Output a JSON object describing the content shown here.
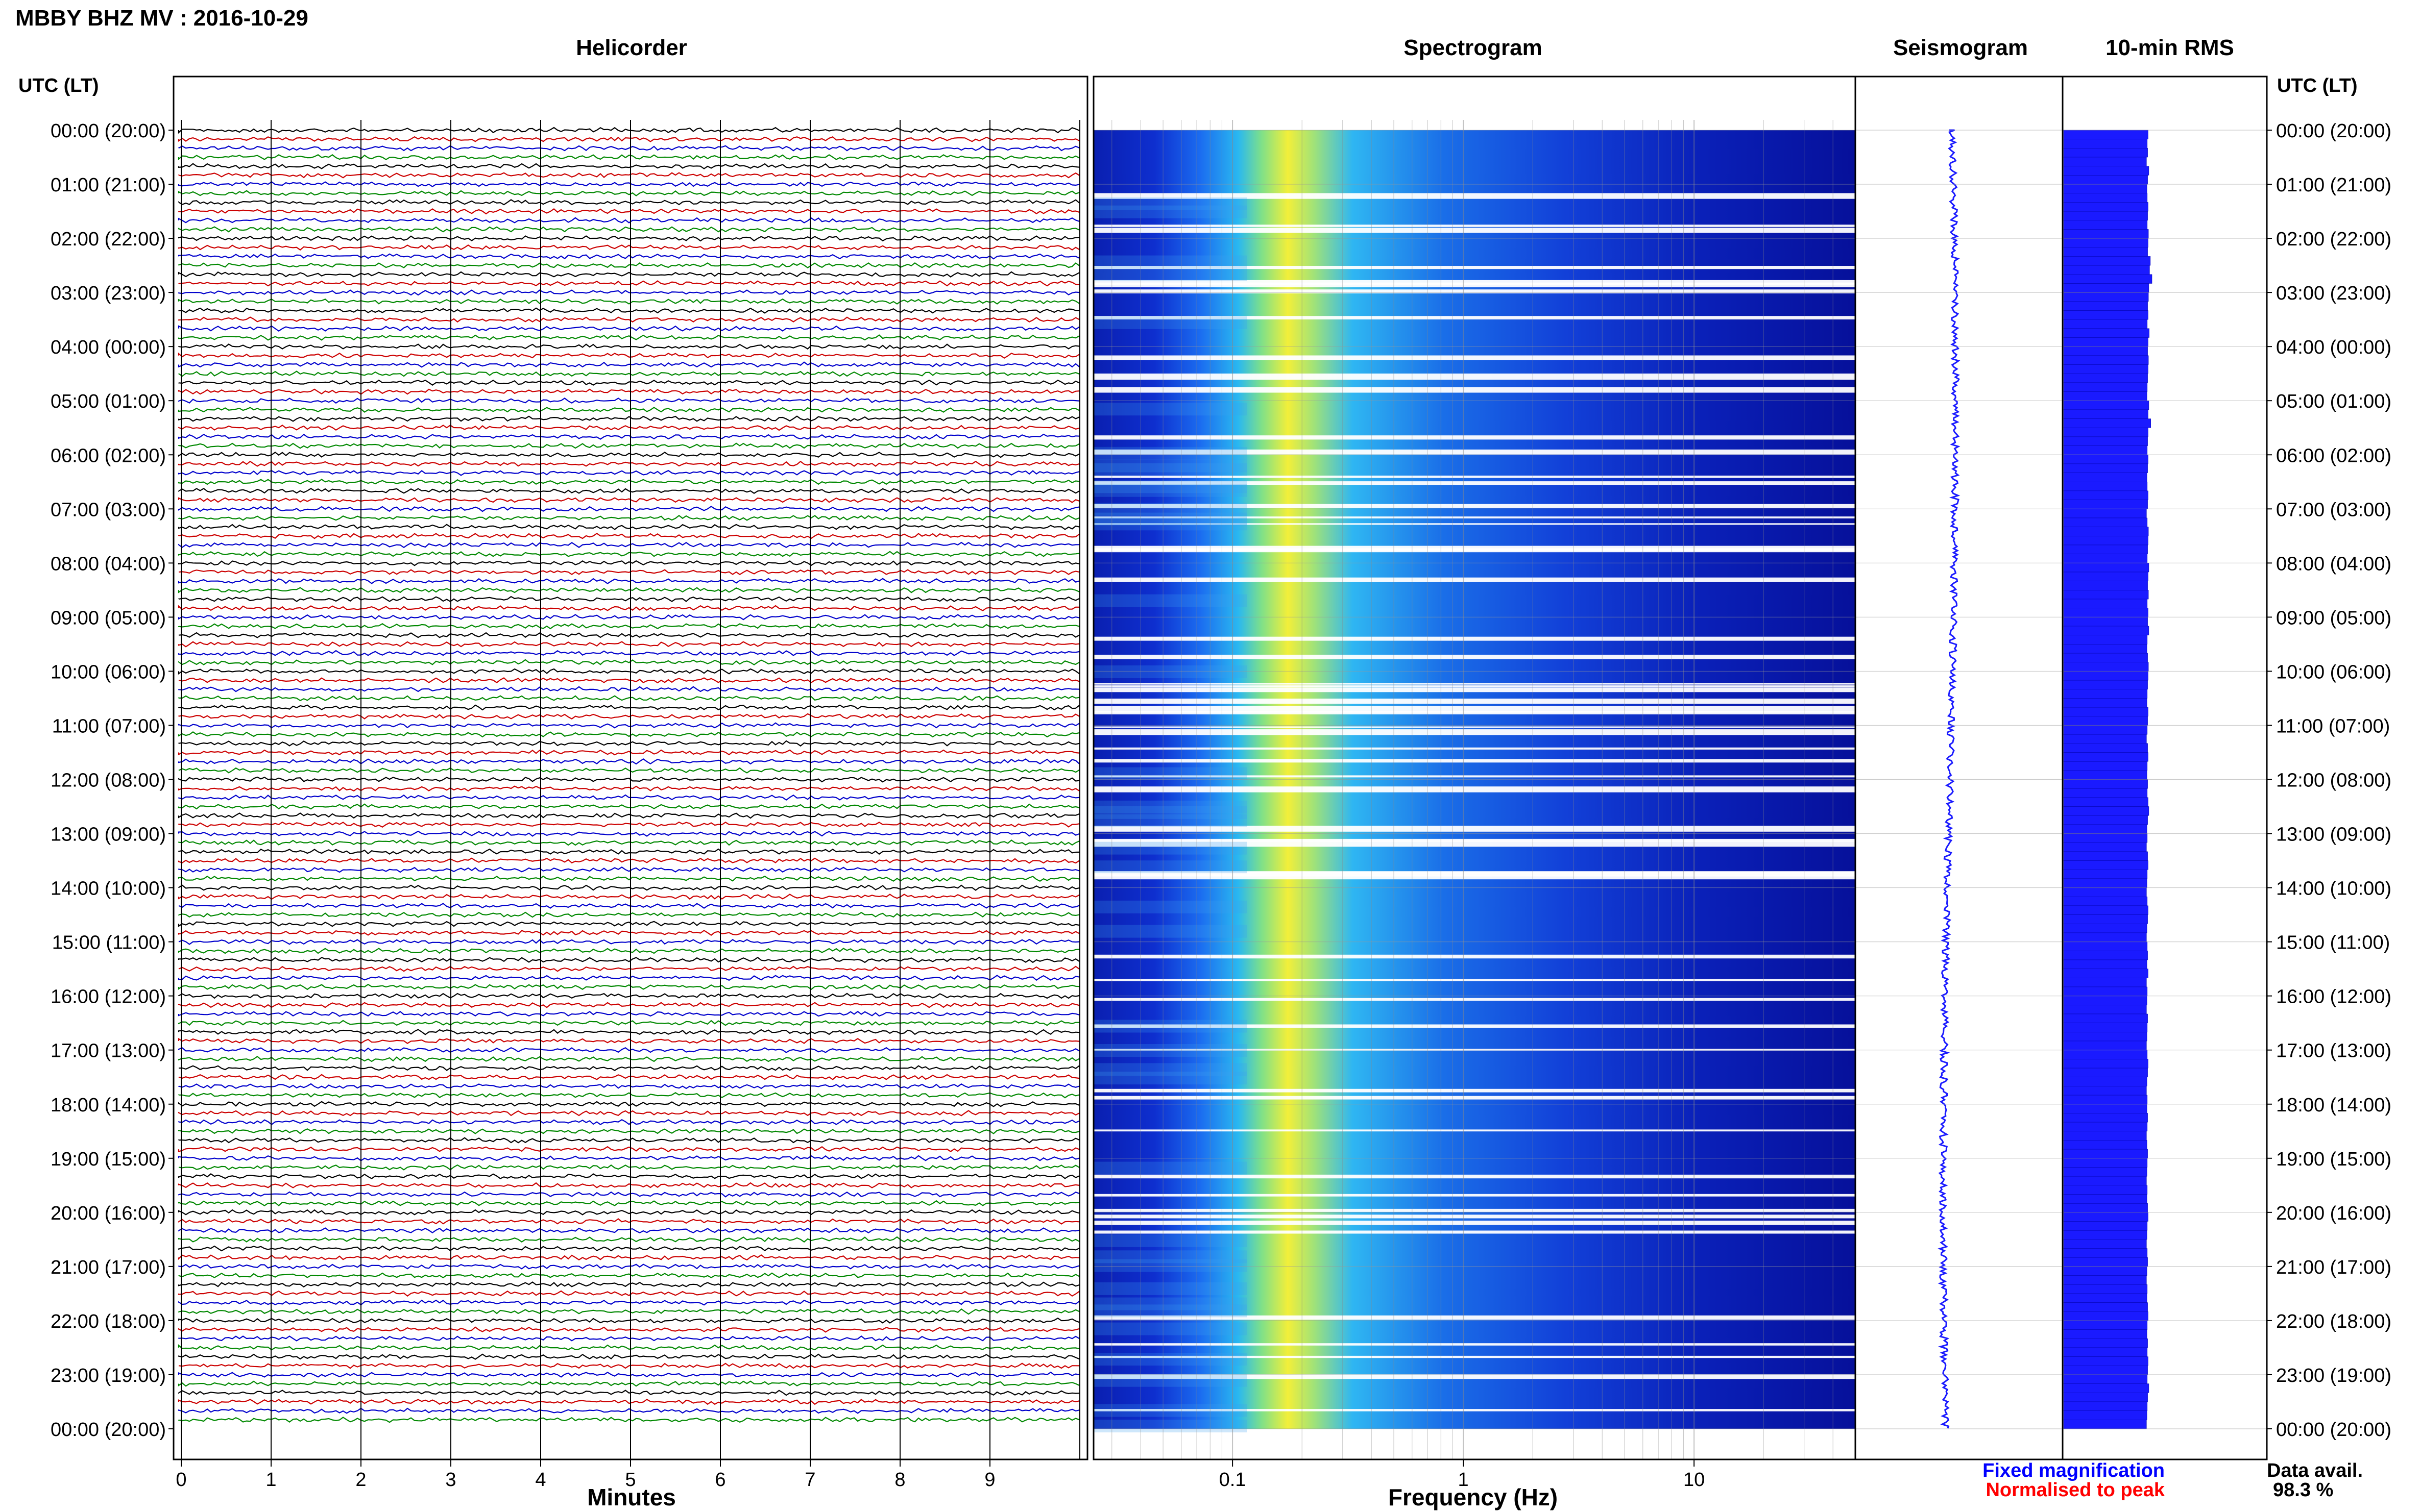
{
  "page_title": "MBBY BHZ MV : 2016-10-29",
  "panels": {
    "helicorder": "Helicorder",
    "spectrogram": "Spectrogram",
    "seismogram": "Seismogram",
    "rms": "10-min RMS"
  },
  "time_axis_label": "UTC (LT)",
  "time_labels": [
    "00:00 (20:00)",
    "01:00 (21:00)",
    "02:00 (22:00)",
    "03:00 (23:00)",
    "04:00 (00:00)",
    "05:00 (01:00)",
    "06:00 (02:00)",
    "07:00 (03:00)",
    "08:00 (04:00)",
    "09:00 (05:00)",
    "10:00 (06:00)",
    "11:00 (07:00)",
    "12:00 (08:00)",
    "13:00 (09:00)",
    "14:00 (10:00)",
    "15:00 (11:00)",
    "16:00 (12:00)",
    "17:00 (13:00)",
    "18:00 (14:00)",
    "19:00 (15:00)",
    "20:00 (16:00)",
    "21:00 (17:00)",
    "22:00 (18:00)",
    "23:00 (19:00)",
    "00:00 (20:00)"
  ],
  "helicorder_axis": {
    "label": "Minutes",
    "ticks": [
      "0",
      "1",
      "2",
      "3",
      "4",
      "5",
      "6",
      "7",
      "8",
      "9"
    ]
  },
  "spectrogram_axis": {
    "label": "Frequency (Hz)",
    "ticks": [
      "0.1",
      "1",
      "10"
    ],
    "scale": "log"
  },
  "trace_colors": [
    "#000000",
    "#cc0000",
    "#0000cc",
    "#008800"
  ],
  "rms_color": "#1a1aff",
  "legend": {
    "fixed": "Fixed magnification",
    "fixed_color": "#0000ff",
    "normalised": "Normalised to peak",
    "normalised_color": "#ff0000"
  },
  "data_availability": {
    "label": "Data avail.",
    "value": "98.3 %"
  },
  "chart_data": [
    {
      "type": "line",
      "title": "Helicorder",
      "xlabel": "Minutes",
      "xlim": [
        0,
        10
      ],
      "description_series": "one 10-minute trace per row, 144 rows over 24 h, colours cycle black/red/blue/green",
      "rows_per_day": 144
    },
    {
      "type": "heatmap",
      "title": "Spectrogram",
      "xlabel": "Frequency (Hz)",
      "xscale": "log",
      "xlim": [
        0.025,
        50
      ],
      "peak_frequency_hz": 0.25
    },
    {
      "type": "line",
      "title": "Seismogram",
      "orientation": "vertical"
    },
    {
      "type": "bar",
      "title": "10-min RMS",
      "orientation": "horizontal",
      "values": [
        0.86,
        0.84,
        0.85,
        0.82,
        0.88,
        0.85,
        0.83,
        0.84,
        0.86,
        0.85,
        0.84,
        0.87,
        0.86,
        0.85,
        0.92,
        0.9,
        0.96,
        0.88,
        0.87,
        0.85,
        0.86,
        0.84,
        0.89,
        0.86,
        0.85,
        0.87,
        0.86,
        0.85,
        0.84,
        0.83,
        0.88,
        0.86,
        0.93,
        0.86,
        0.85,
        0.84,
        0.86,
        0.85,
        0.83,
        0.84,
        0.86,
        0.85,
        0.82,
        0.84,
        0.87,
        0.86,
        0.85,
        0.84,
        0.88,
        0.86,
        0.85,
        0.87,
        0.84,
        0.86,
        0.85,
        0.88,
        0.84,
        0.83,
        0.85,
        0.87,
        0.86,
        0.85,
        0.84,
        0.83,
        0.86,
        0.85,
        0.84,
        0.82,
        0.85,
        0.86,
        0.84,
        0.83,
        0.85,
        0.84,
        0.86,
        0.88,
        0.85,
        0.83,
        0.84,
        0.82,
        0.85,
        0.86,
        0.84,
        0.83,
        0.82,
        0.84,
        0.86,
        0.85,
        0.83,
        0.82,
        0.84,
        0.85,
        0.83,
        0.86,
        0.82,
        0.84,
        0.83,
        0.82,
        0.85,
        0.84,
        0.83,
        0.82,
        0.84,
        0.86,
        0.85,
        0.83,
        0.82,
        0.84,
        0.83,
        0.85,
        0.84,
        0.82,
        0.83,
        0.85,
        0.84,
        0.83,
        0.82,
        0.84,
        0.83,
        0.85,
        0.86,
        0.84,
        0.83,
        0.82,
        0.84,
        0.85,
        0.83,
        0.82,
        0.84,
        0.83,
        0.85,
        0.86,
        0.84,
        0.83,
        0.85,
        0.84,
        0.86,
        0.85,
        0.84,
        0.88,
        0.85,
        0.84,
        0.83,
        0.82
      ]
    }
  ]
}
